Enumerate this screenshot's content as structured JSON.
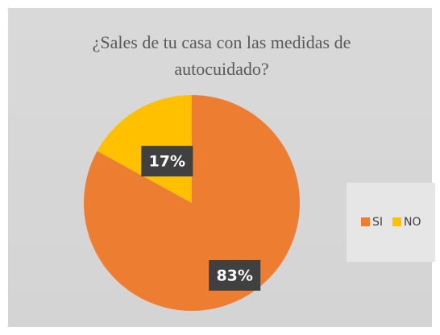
{
  "chart_data": {
    "type": "pie",
    "title": "¿Sales de tu casa con las medidas de autocuidado?",
    "categories": [
      "SI",
      "NO"
    ],
    "values": [
      83,
      17
    ],
    "value_labels": [
      "83%",
      "17%"
    ],
    "colors": [
      "#ed7d31",
      "#ffc000"
    ],
    "legend": "right"
  }
}
